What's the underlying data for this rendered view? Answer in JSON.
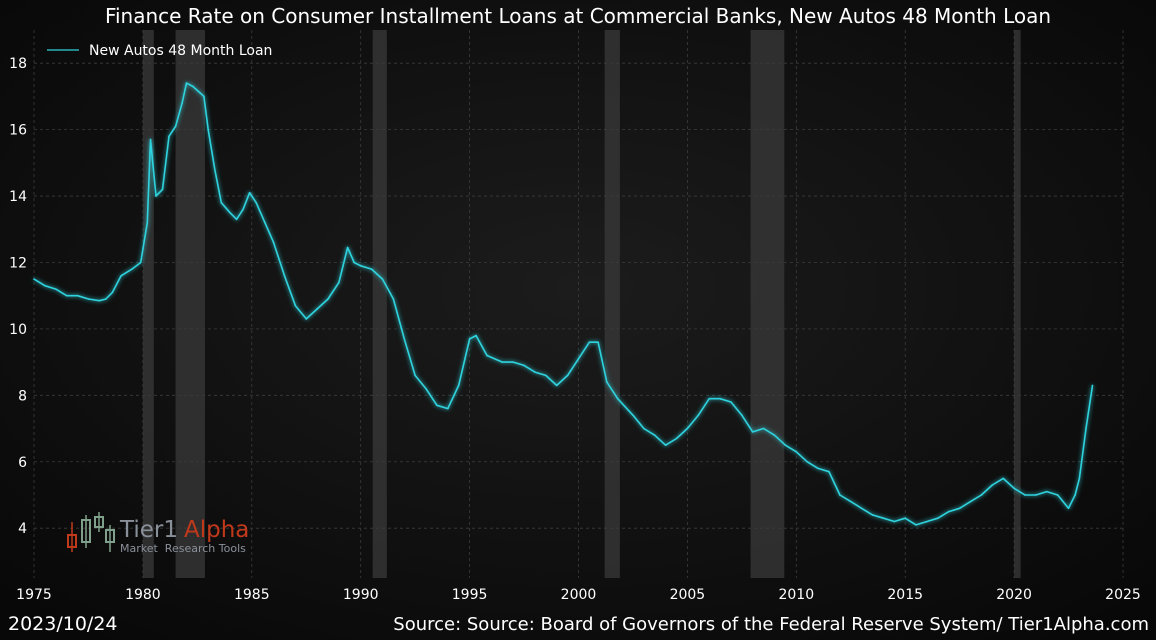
{
  "footer": {
    "date": "2023/10/24",
    "source": "Source: Source: Board of Governors of the Federal Reserve System/ Tier1Alpha.com"
  },
  "logo": {
    "name_part1": "Tier1",
    "name_part2": "Alpha",
    "tagline": "Market  Research Tools"
  },
  "colors": {
    "background": "#0b0b0b",
    "line": "#2fd3de",
    "recession_band": "#3a3a3a",
    "grid": "#3c3c3c",
    "text": "#ffffff",
    "logo_accent": "#c0391b",
    "logo_gray": "#8a9099"
  },
  "chart_data": {
    "type": "line",
    "title": "Finance Rate on Consumer Installment Loans at Commercial Banks, New Autos 48 Month Loan",
    "xlabel": "",
    "ylabel": "",
    "xlim": [
      1975,
      2025
    ],
    "ylim": [
      2.5,
      19
    ],
    "xticks": [
      1975,
      1980,
      1985,
      1990,
      1995,
      2000,
      2005,
      2010,
      2015,
      2020,
      2025
    ],
    "yticks": [
      4,
      6,
      8,
      10,
      12,
      14,
      16,
      18
    ],
    "grid": true,
    "legend_position": "top-left",
    "recessions": [
      [
        1980.0,
        1980.5
      ],
      [
        1981.5,
        1982.85
      ],
      [
        1990.55,
        1991.2
      ],
      [
        2001.2,
        2001.9
      ],
      [
        2007.9,
        2009.45
      ],
      [
        2020.0,
        2020.3
      ]
    ],
    "series": [
      {
        "name": "New Autos 48 Month Loan",
        "x": [
          1975.0,
          1975.5,
          1976.0,
          1976.5,
          1977.0,
          1977.5,
          1978.0,
          1978.3,
          1978.6,
          1979.0,
          1979.5,
          1979.9,
          1980.2,
          1980.35,
          1980.6,
          1980.9,
          1981.2,
          1981.5,
          1981.8,
          1982.0,
          1982.3,
          1982.8,
          1983.0,
          1983.3,
          1983.6,
          1984.0,
          1984.3,
          1984.6,
          1984.9,
          1985.2,
          1985.6,
          1986.0,
          1986.5,
          1987.0,
          1987.5,
          1988.0,
          1988.5,
          1989.0,
          1989.4,
          1989.7,
          1990.0,
          1990.5,
          1991.0,
          1991.5,
          1992.0,
          1992.5,
          1993.0,
          1993.5,
          1994.0,
          1994.5,
          1995.0,
          1995.3,
          1995.8,
          1996.5,
          1997.0,
          1997.5,
          1998.0,
          1998.5,
          1999.0,
          1999.5,
          2000.0,
          2000.5,
          2000.9,
          2001.3,
          2001.8,
          2002.5,
          2003.0,
          2003.5,
          2004.0,
          2004.5,
          2005.0,
          2005.5,
          2006.0,
          2006.5,
          2007.0,
          2007.5,
          2008.0,
          2008.5,
          2009.0,
          2009.5,
          2010.0,
          2010.5,
          2011.0,
          2011.5,
          2012.0,
          2012.5,
          2013.0,
          2013.5,
          2014.0,
          2014.5,
          2015.0,
          2015.5,
          2016.0,
          2016.5,
          2017.0,
          2017.5,
          2018.0,
          2018.5,
          2019.0,
          2019.5,
          2020.0,
          2020.5,
          2021.0,
          2021.5,
          2022.0,
          2022.5,
          2022.8,
          2023.0,
          2023.3,
          2023.6
        ],
        "values": [
          11.5,
          11.3,
          11.2,
          11.0,
          11.0,
          10.9,
          10.85,
          10.9,
          11.1,
          11.6,
          11.8,
          12.0,
          13.2,
          15.7,
          14.0,
          14.2,
          15.8,
          16.1,
          16.8,
          17.4,
          17.3,
          17.0,
          16.0,
          14.8,
          13.8,
          13.5,
          13.3,
          13.6,
          14.1,
          13.8,
          13.2,
          12.6,
          11.6,
          10.7,
          10.3,
          10.6,
          10.9,
          11.4,
          12.45,
          12.0,
          11.9,
          11.8,
          11.5,
          10.9,
          9.7,
          8.6,
          8.2,
          7.7,
          7.6,
          8.3,
          9.7,
          9.8,
          9.2,
          9.0,
          9.0,
          8.9,
          8.7,
          8.6,
          8.3,
          8.6,
          9.1,
          9.6,
          9.6,
          8.4,
          7.9,
          7.4,
          7.0,
          6.8,
          6.5,
          6.7,
          7.0,
          7.4,
          7.9,
          7.9,
          7.8,
          7.4,
          6.9,
          7.0,
          6.8,
          6.5,
          6.3,
          6.0,
          5.8,
          5.7,
          5.0,
          4.8,
          4.6,
          4.4,
          4.3,
          4.2,
          4.3,
          4.1,
          4.2,
          4.3,
          4.5,
          4.6,
          4.8,
          5.0,
          5.3,
          5.5,
          5.2,
          5.0,
          5.0,
          5.1,
          5.0,
          4.6,
          5.0,
          5.5,
          7.0,
          8.3
        ]
      }
    ]
  }
}
